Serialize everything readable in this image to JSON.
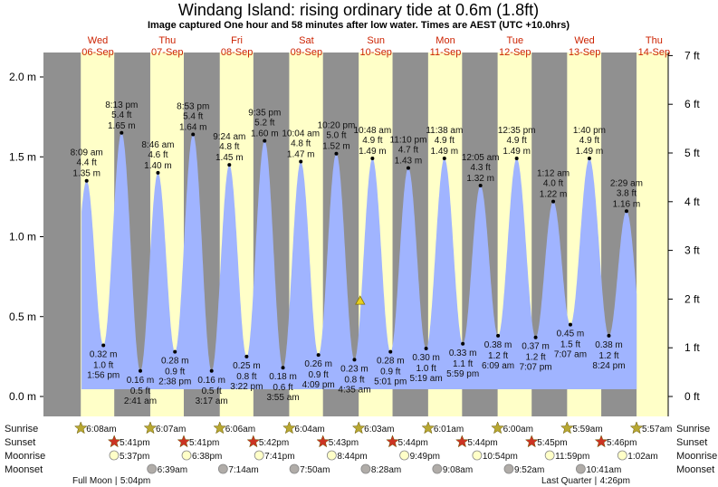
{
  "chart_data": {
    "type": "area",
    "title": "Windang Island: rising  ordinary tide at 0.6m (1.8ft)",
    "subtitle": "Image captured One hour and 58 minutes after low water. Times are AEST (UTC +10.0hrs)",
    "days": [
      {
        "name": "Wed",
        "date": "06-Sep"
      },
      {
        "name": "Thu",
        "date": "07-Sep"
      },
      {
        "name": "Fri",
        "date": "08-Sep"
      },
      {
        "name": "Sat",
        "date": "09-Sep"
      },
      {
        "name": "Sun",
        "date": "10-Sep"
      },
      {
        "name": "Mon",
        "date": "11-Sep"
      },
      {
        "name": "Tue",
        "date": "12-Sep"
      },
      {
        "name": "Wed",
        "date": "13-Sep"
      },
      {
        "name": "Thu",
        "date": "14-Sep"
      }
    ],
    "y_left": {
      "unit": "m",
      "ticks": [
        "0.0 m",
        "0.5 m",
        "1.0 m",
        "1.5 m",
        "2.0 m"
      ],
      "values": [
        0,
        0.5,
        1.0,
        1.5,
        2.0
      ]
    },
    "y_right": {
      "unit": "ft",
      "ticks": [
        "0 ft",
        "1 ft",
        "2 ft",
        "3 ft",
        "4 ft",
        "5 ft",
        "6 ft",
        "7 ft"
      ],
      "values": [
        0,
        1,
        2,
        3,
        4,
        5,
        6,
        7
      ]
    },
    "current": {
      "day": 4,
      "time": "6:33 am",
      "m": 0.6
    },
    "extremes": [
      {
        "type": "high",
        "day": 0,
        "time": "8:09 am",
        "ft": "4.4 ft",
        "m": 1.35
      },
      {
        "type": "low",
        "day": 0,
        "time": "1:56 pm",
        "ft": "1.0 ft",
        "m": 0.32
      },
      {
        "type": "high",
        "day": 0,
        "time": "8:13 pm",
        "ft": "5.4 ft",
        "m": 1.65
      },
      {
        "type": "low",
        "day": 1,
        "time": "2:41 am",
        "ft": "0.5 ft",
        "m": 0.16
      },
      {
        "type": "high",
        "day": 1,
        "time": "8:46 am",
        "ft": "4.6 ft",
        "m": 1.4
      },
      {
        "type": "low",
        "day": 1,
        "time": "2:38 pm",
        "ft": "0.9 ft",
        "m": 0.28
      },
      {
        "type": "high",
        "day": 1,
        "time": "8:53 pm",
        "ft": "5.4 ft",
        "m": 1.64
      },
      {
        "type": "low",
        "day": 2,
        "time": "3:17 am",
        "ft": "0.5 ft",
        "m": 0.16
      },
      {
        "type": "high",
        "day": 2,
        "time": "9:24 am",
        "ft": "4.8 ft",
        "m": 1.45
      },
      {
        "type": "low",
        "day": 2,
        "time": "3:22 pm",
        "ft": "0.8 ft",
        "m": 0.25
      },
      {
        "type": "high",
        "day": 2,
        "time": "9:35 pm",
        "ft": "5.2 ft",
        "m": 1.6
      },
      {
        "type": "low",
        "day": 3,
        "time": "3:55 am",
        "ft": "0.6 ft",
        "m": 0.18
      },
      {
        "type": "high",
        "day": 3,
        "time": "10:04 am",
        "ft": "4.8 ft",
        "m": 1.47
      },
      {
        "type": "low",
        "day": 3,
        "time": "4:09 pm",
        "ft": "0.9 ft",
        "m": 0.26
      },
      {
        "type": "high",
        "day": 3,
        "time": "10:20 pm",
        "ft": "5.0 ft",
        "m": 1.52
      },
      {
        "type": "low",
        "day": 4,
        "time": "4:35 am",
        "ft": "0.8 ft",
        "m": 0.23
      },
      {
        "type": "high",
        "day": 4,
        "time": "10:48 am",
        "ft": "4.9 ft",
        "m": 1.49
      },
      {
        "type": "low",
        "day": 4,
        "time": "5:01 pm",
        "ft": "0.9 ft",
        "m": 0.28
      },
      {
        "type": "high",
        "day": 4,
        "time": "11:10 pm",
        "ft": "4.7 ft",
        "m": 1.43
      },
      {
        "type": "low",
        "day": 5,
        "time": "5:19 am",
        "ft": "1.0 ft",
        "m": 0.3
      },
      {
        "type": "high",
        "day": 5,
        "time": "11:38 am",
        "ft": "4.9 ft",
        "m": 1.49
      },
      {
        "type": "low",
        "day": 5,
        "time": "5:59 pm",
        "ft": "1.1 ft",
        "m": 0.33
      },
      {
        "type": "high",
        "day": 6,
        "time": "12:05 am",
        "ft": "4.3 ft",
        "m": 1.32
      },
      {
        "type": "low",
        "day": 6,
        "time": "6:09 am",
        "ft": "1.2 ft",
        "m": 0.38
      },
      {
        "type": "high",
        "day": 6,
        "time": "12:35 pm",
        "ft": "4.9 ft",
        "m": 1.49
      },
      {
        "type": "low",
        "day": 6,
        "time": "7:07 pm",
        "ft": "1.2 ft",
        "m": 0.37
      },
      {
        "type": "high",
        "day": 7,
        "time": "1:12 am",
        "ft": "4.0 ft",
        "m": 1.22
      },
      {
        "type": "low",
        "day": 7,
        "time": "7:07 am",
        "ft": "1.5 ft",
        "m": 0.45
      },
      {
        "type": "high",
        "day": 7,
        "time": "1:40 pm",
        "ft": "4.9 ft",
        "m": 1.49
      },
      {
        "type": "low",
        "day": 7,
        "time": "8:24 pm",
        "ft": "1.2 ft",
        "m": 0.38
      },
      {
        "type": "high",
        "day": 8,
        "time": "2:29 am",
        "ft": "3.8 ft",
        "m": 1.16
      }
    ],
    "astro_labels": {
      "sunrise": "Sunrise",
      "sunset": "Sunset",
      "moonrise": "Moonrise",
      "moonset": "Moonset"
    },
    "sunrise": [
      {
        "day": 0,
        "time": "6:08am"
      },
      {
        "day": 1,
        "time": "6:07am"
      },
      {
        "day": 2,
        "time": "6:06am"
      },
      {
        "day": 3,
        "time": "6:04am"
      },
      {
        "day": 4,
        "time": "6:03am"
      },
      {
        "day": 5,
        "time": "6:01am"
      },
      {
        "day": 6,
        "time": "6:00am"
      },
      {
        "day": 7,
        "time": "5:59am"
      },
      {
        "day": 8,
        "time": "5:57am"
      }
    ],
    "sunset": [
      {
        "day": 0,
        "time": "5:41pm"
      },
      {
        "day": 1,
        "time": "5:41pm"
      },
      {
        "day": 2,
        "time": "5:42pm"
      },
      {
        "day": 3,
        "time": "5:43pm"
      },
      {
        "day": 4,
        "time": "5:44pm"
      },
      {
        "day": 5,
        "time": "5:44pm"
      },
      {
        "day": 6,
        "time": "5:45pm"
      },
      {
        "day": 7,
        "time": "5:46pm"
      }
    ],
    "moonrise": [
      {
        "day": 0,
        "time": "5:37pm"
      },
      {
        "day": 1,
        "time": "6:38pm"
      },
      {
        "day": 2,
        "time": "7:41pm"
      },
      {
        "day": 3,
        "time": "8:44pm"
      },
      {
        "day": 4,
        "time": "9:49pm"
      },
      {
        "day": 5,
        "time": "10:54pm"
      },
      {
        "day": 6,
        "time": "11:59pm"
      },
      {
        "day": 8,
        "time": "1:02am"
      }
    ],
    "moonset": [
      {
        "day": 1,
        "time": "6:39am"
      },
      {
        "day": 2,
        "time": "7:14am"
      },
      {
        "day": 3,
        "time": "7:50am"
      },
      {
        "day": 4,
        "time": "8:28am"
      },
      {
        "day": 5,
        "time": "9:08am"
      },
      {
        "day": 6,
        "time": "9:52am"
      },
      {
        "day": 7,
        "time": "10:41am"
      }
    ],
    "moon_phases": [
      {
        "label": "Full Moon",
        "time": "5:04pm",
        "day": 0
      },
      {
        "label": "Last Quarter",
        "time": "4:26pm",
        "day": 7
      }
    ],
    "colors": {
      "night": "#909090",
      "day": "#ffffc8",
      "water": "#a0b4ff",
      "day_label": "#cc2200",
      "sunrise_star": "#b8a832",
      "sunset_star": "#cc3322",
      "moonrise": "#ffffc8",
      "moonset": "#b0aca8"
    }
  }
}
